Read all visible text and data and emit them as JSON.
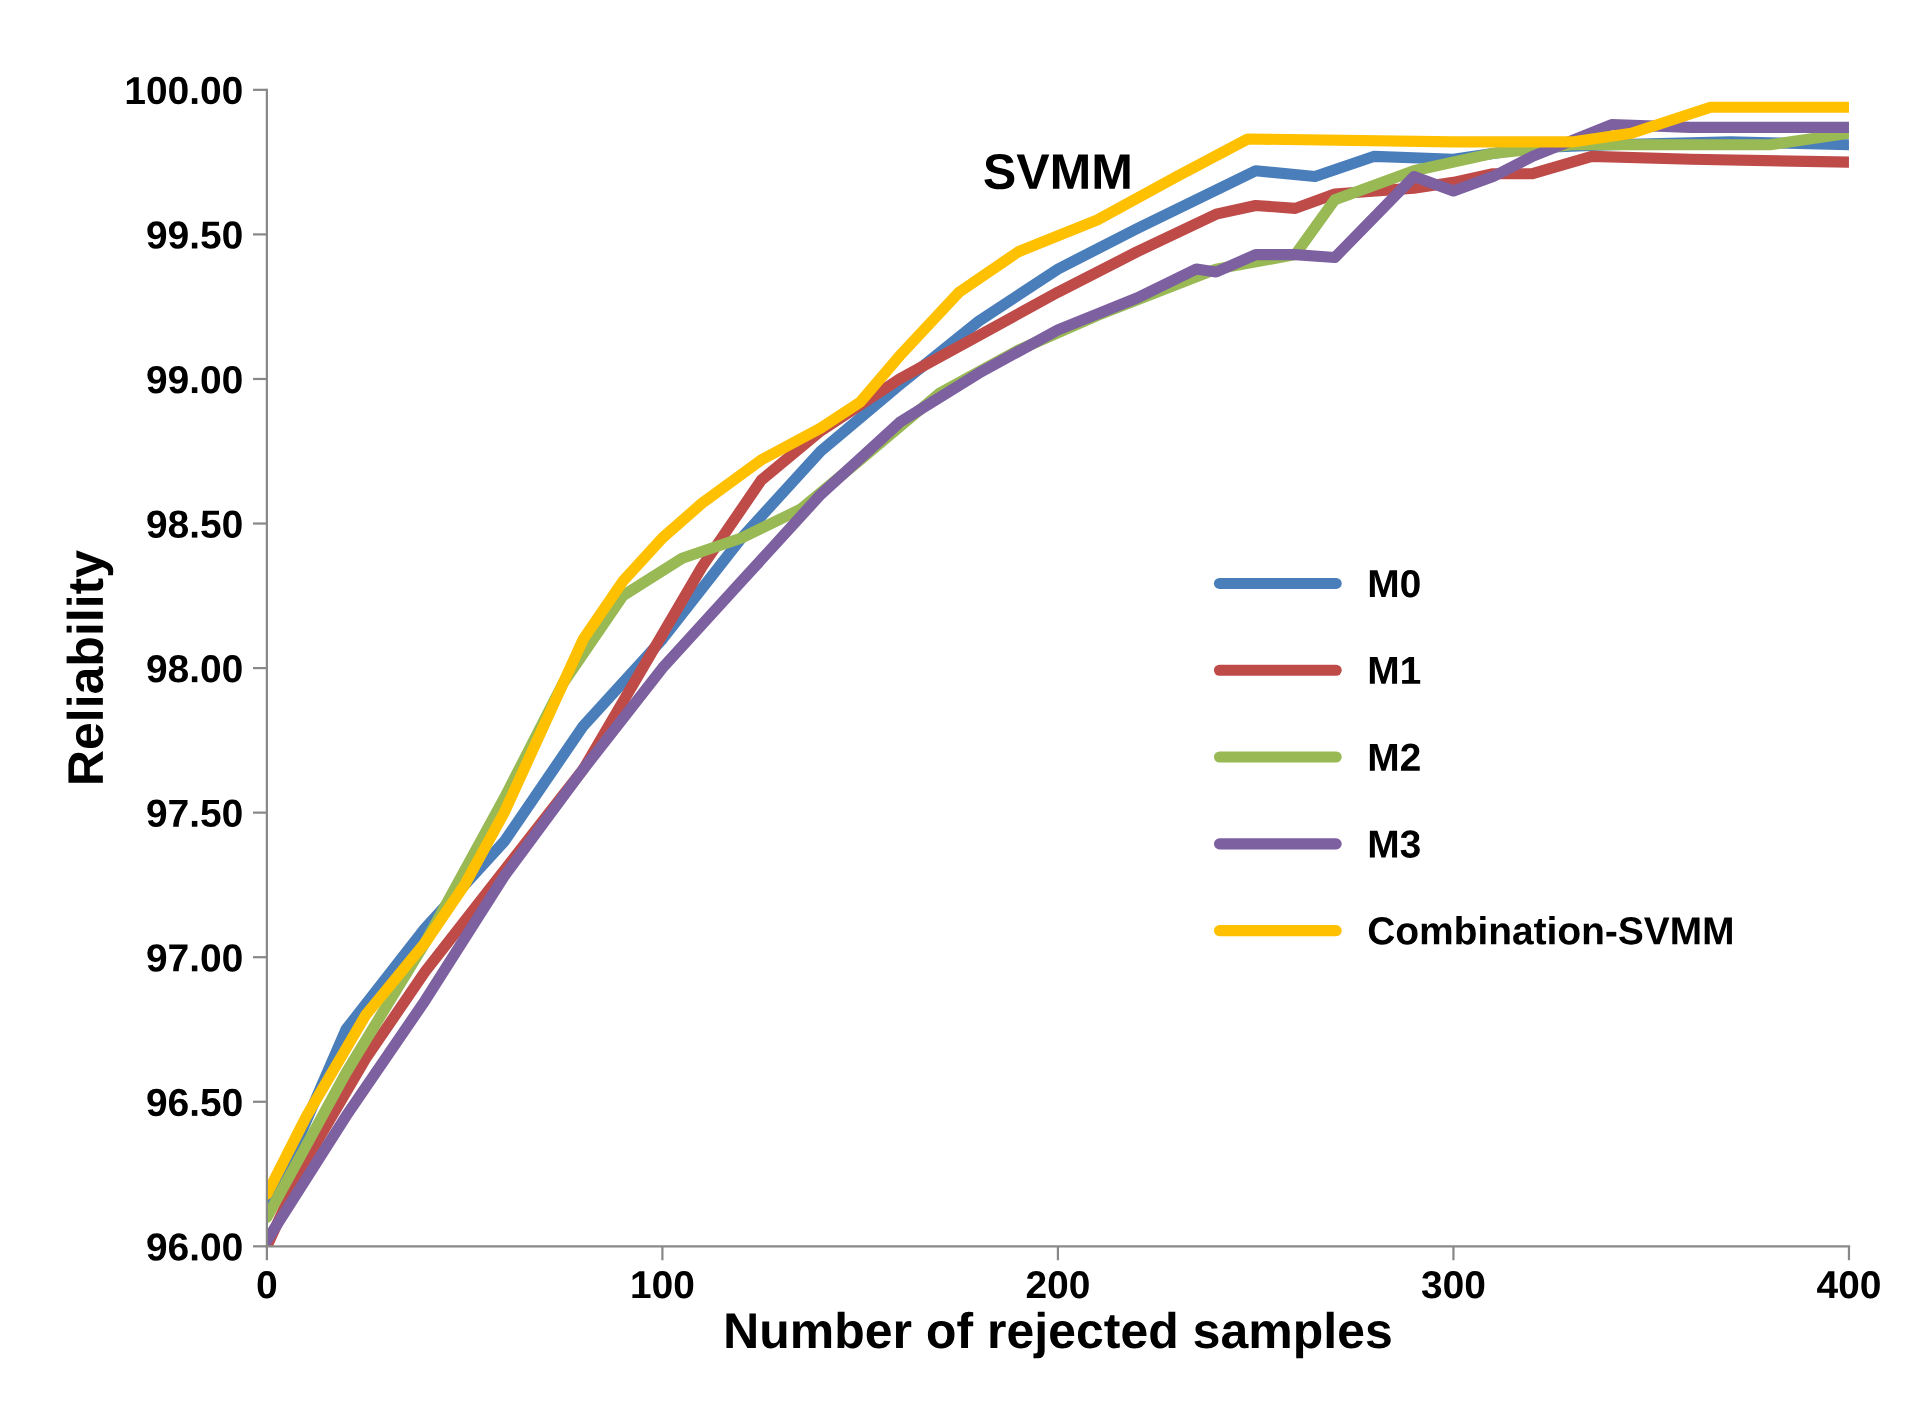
{
  "chart_data": {
    "type": "line",
    "title": "SVMM",
    "xlabel": "Number of rejected samples",
    "ylabel": "Reliability",
    "xlim": [
      0,
      400
    ],
    "xticks": [
      0,
      100,
      200,
      300,
      400
    ],
    "ylim": [
      96,
      100
    ],
    "yticks": [
      {
        "value": 96,
        "label": "96.00"
      },
      {
        "value": 96.5,
        "label": "96.50"
      },
      {
        "value": 97,
        "label": "97.00"
      },
      {
        "value": 97.5,
        "label": "97.50"
      },
      {
        "value": 98,
        "label": "98.00"
      },
      {
        "value": 98.5,
        "label": "98.50"
      },
      {
        "value": 99,
        "label": "99.00"
      },
      {
        "value": 99.5,
        "label": "99.50"
      },
      {
        "value": 100,
        "label": "100.00"
      }
    ],
    "grid": false,
    "legend": "right",
    "marker": "none",
    "line_style": "solid",
    "series": [
      {
        "name": "M0",
        "color": "#4a7ebb",
        "x": [
          0,
          20,
          40,
          60,
          80,
          100,
          120,
          140,
          160,
          180,
          200,
          220,
          250,
          265,
          280,
          300,
          320,
          340,
          370,
          400
        ],
        "values": [
          96.12,
          96.75,
          97.1,
          97.4,
          97.8,
          98.1,
          98.45,
          98.75,
          98.98,
          99.2,
          99.38,
          99.52,
          99.72,
          99.7,
          99.77,
          99.76,
          99.8,
          99.81,
          99.82,
          99.81
        ]
      },
      {
        "name": "M1",
        "color": "#be4b48",
        "x": [
          0,
          10,
          25,
          40,
          60,
          80,
          95,
          110,
          125,
          140,
          160,
          180,
          200,
          220,
          240,
          250,
          260,
          270,
          290,
          300,
          310,
          320,
          335,
          360,
          400
        ],
        "values": [
          96.0,
          96.3,
          96.65,
          96.95,
          97.3,
          97.65,
          98.0,
          98.35,
          98.65,
          98.82,
          99.0,
          99.15,
          99.3,
          99.44,
          99.57,
          99.6,
          99.59,
          99.64,
          99.66,
          99.68,
          99.71,
          99.71,
          99.77,
          99.76,
          99.75
        ]
      },
      {
        "name": "M2",
        "color": "#98b954",
        "x": [
          0,
          20,
          40,
          60,
          75,
          90,
          105,
          120,
          135,
          150,
          170,
          190,
          210,
          240,
          260,
          270,
          290,
          310,
          330,
          380,
          400
        ],
        "values": [
          96.1,
          96.6,
          97.05,
          97.55,
          97.95,
          98.25,
          98.38,
          98.45,
          98.55,
          98.72,
          98.95,
          99.1,
          99.22,
          99.38,
          99.43,
          99.62,
          99.72,
          99.78,
          99.81,
          99.81,
          99.85
        ]
      },
      {
        "name": "M3",
        "color": "#7d60a0",
        "x": [
          0,
          20,
          40,
          60,
          80,
          100,
          120,
          140,
          160,
          180,
          200,
          220,
          235,
          240,
          250,
          260,
          270,
          290,
          300,
          310,
          320,
          340,
          360,
          400
        ],
        "values": [
          96.02,
          96.45,
          96.85,
          97.28,
          97.65,
          98.0,
          98.3,
          98.6,
          98.85,
          99.02,
          99.17,
          99.28,
          99.38,
          99.37,
          99.43,
          99.43,
          99.42,
          99.7,
          99.65,
          99.7,
          99.77,
          99.88,
          99.87,
          99.87
        ]
      },
      {
        "name": "Combination-SVMM",
        "color": "#ffc000",
        "x": [
          0,
          10,
          25,
          40,
          50,
          60,
          70,
          80,
          90,
          100,
          110,
          125,
          140,
          150,
          160,
          175,
          190,
          210,
          230,
          248,
          300,
          330,
          345,
          365,
          380,
          400
        ],
        "values": [
          96.18,
          96.45,
          96.8,
          97.05,
          97.25,
          97.5,
          97.8,
          98.1,
          98.3,
          98.45,
          98.57,
          98.72,
          98.83,
          98.92,
          99.08,
          99.3,
          99.44,
          99.55,
          99.7,
          99.83,
          99.82,
          99.82,
          99.85,
          99.94,
          99.94,
          99.94
        ]
      }
    ]
  }
}
